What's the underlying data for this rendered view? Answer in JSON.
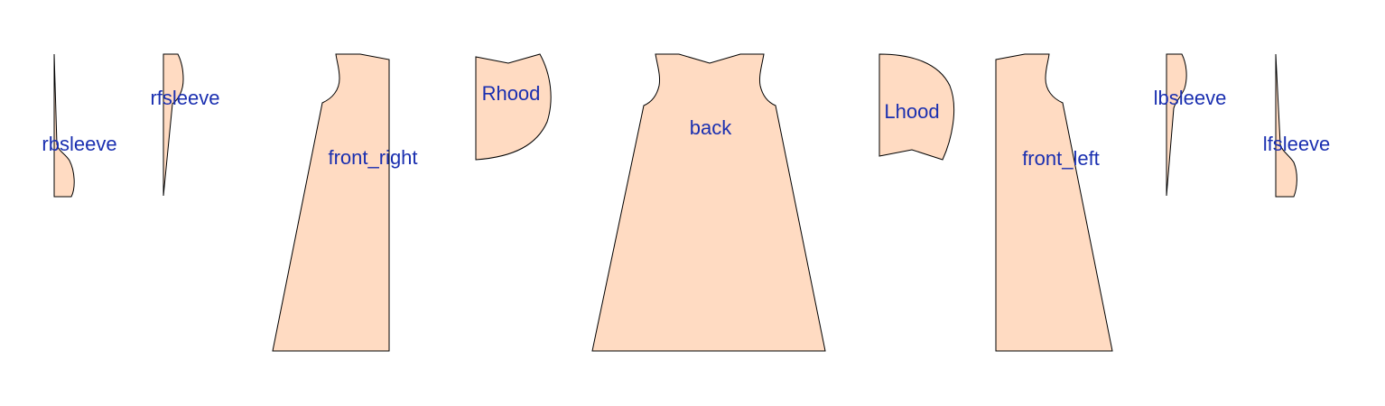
{
  "diagram": {
    "piece_fill": "#ffdbc2",
    "piece_stroke": "#000000",
    "label_color": "#1a2fb0",
    "pieces": [
      {
        "id": "rbsleeve",
        "label": "rbsleeve"
      },
      {
        "id": "rfsleeve",
        "label": "rfsleeve"
      },
      {
        "id": "front_right",
        "label": "front_right"
      },
      {
        "id": "rhood",
        "label": "Rhood"
      },
      {
        "id": "back",
        "label": "back"
      },
      {
        "id": "lhood",
        "label": "Lhood"
      },
      {
        "id": "front_left",
        "label": "front_left"
      },
      {
        "id": "lbsleeve",
        "label": "lbsleeve"
      },
      {
        "id": "lfsleeve",
        "label": "lfsleeve"
      }
    ]
  }
}
